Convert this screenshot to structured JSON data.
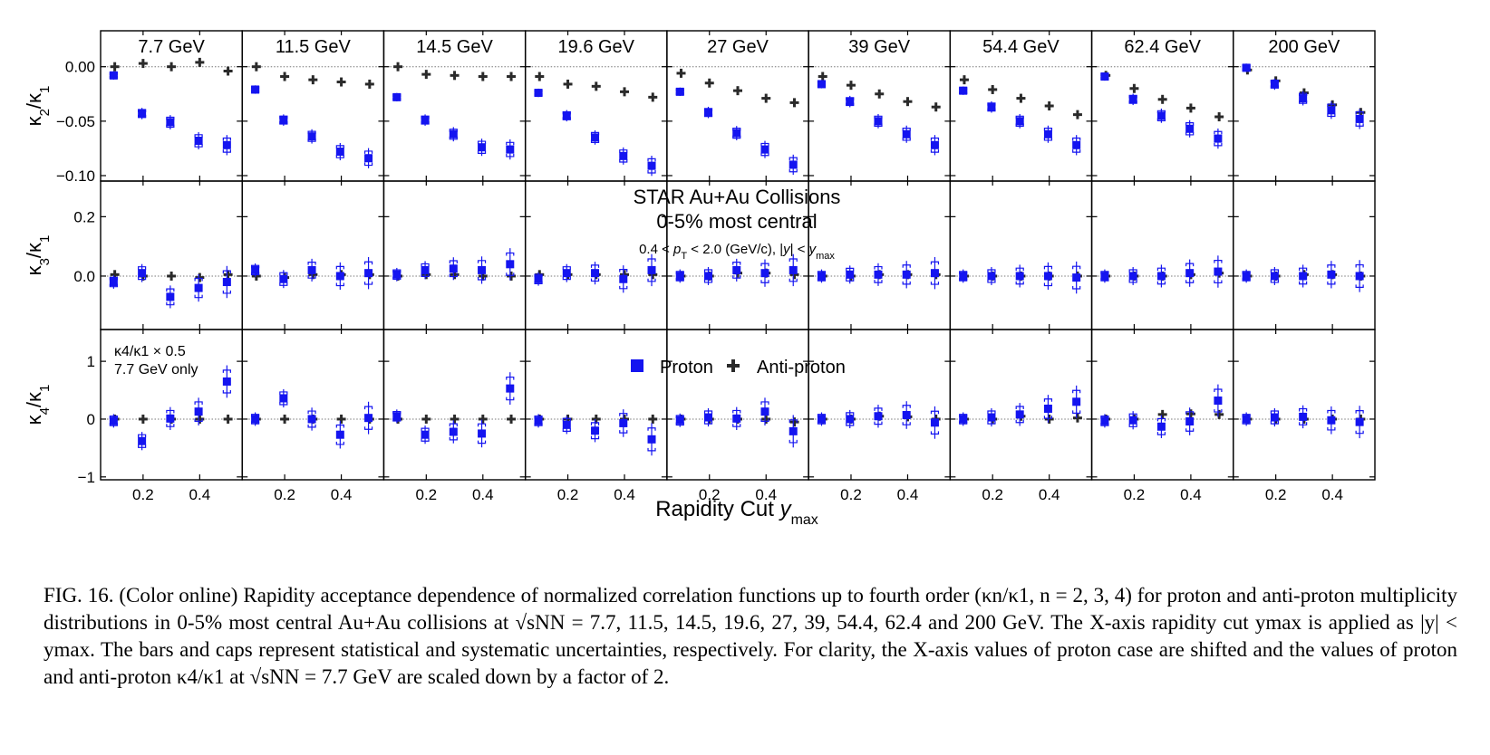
{
  "chart_data": {
    "type": "scatter",
    "title": [
      "STAR Au+Au Collisions",
      "0-5% most central"
    ],
    "subtitle_parts": [
      "0.4 < ",
      "p",
      "T",
      " < 2.0 (GeV/c), |",
      "y",
      "| < ",
      "y",
      "max"
    ],
    "xlabel_parts": [
      "Rapidity Cut ",
      "y",
      "max"
    ],
    "energies": [
      "7.7 GeV",
      "11.5 GeV",
      "14.5 GeV",
      "19.6 GeV",
      "27 GeV",
      "39 GeV",
      "54.4 GeV",
      "62.4 GeV",
      "200 GeV"
    ],
    "x": [
      0.1,
      0.2,
      0.3,
      0.4,
      0.5
    ],
    "x_ticks": [
      0.2,
      0.4
    ],
    "x_tick_labels": [
      "0.2",
      "0.4"
    ],
    "xlim": [
      0.05,
      0.55
    ],
    "legend": [
      "Proton",
      "Anti-proton"
    ],
    "colors": {
      "proton": "#1414f0",
      "antiproton": "#2a2a2a",
      "frame": "#000000",
      "zeroline": "#777777"
    },
    "note_7p7": [
      "κ4/κ1 × 0.5",
      "7.7 GeV only"
    ],
    "rows": [
      {
        "ylabel": [
          "κ",
          "2",
          "/κ",
          "1"
        ],
        "ylim": [
          -0.105,
          0.033
        ],
        "yticks": [
          0.0,
          -0.05,
          -0.1
        ],
        "ytick_labels": [
          "0.00",
          "−0.05",
          "−0.10"
        ],
        "proton": [
          [
            -0.008,
            -0.043,
            -0.051,
            -0.068,
            -0.072
          ],
          [
            -0.021,
            -0.049,
            -0.064,
            -0.078,
            -0.084
          ],
          [
            -0.028,
            -0.049,
            -0.062,
            -0.074,
            -0.076
          ],
          [
            -0.024,
            -0.045,
            -0.065,
            -0.082,
            -0.091
          ],
          [
            -0.023,
            -0.042,
            -0.061,
            -0.076,
            -0.09
          ],
          [
            -0.016,
            -0.032,
            -0.05,
            -0.062,
            -0.072
          ],
          [
            -0.022,
            -0.037,
            -0.05,
            -0.062,
            -0.072
          ],
          [
            -0.009,
            -0.03,
            -0.045,
            -0.057,
            -0.066
          ],
          [
            -0.001,
            -0.016,
            -0.029,
            -0.04,
            -0.048
          ]
        ],
        "antiproton": [
          [
            0.0,
            0.003,
            0.0,
            0.004,
            -0.004
          ],
          [
            0.0,
            -0.009,
            -0.012,
            -0.014,
            -0.016
          ],
          [
            0.0,
            -0.007,
            -0.008,
            -0.009,
            -0.009
          ],
          [
            -0.009,
            -0.016,
            -0.018,
            -0.023,
            -0.028
          ],
          [
            -0.006,
            -0.015,
            -0.022,
            -0.029,
            -0.033
          ],
          [
            -0.009,
            -0.017,
            -0.025,
            -0.032,
            -0.037
          ],
          [
            -0.012,
            -0.021,
            -0.029,
            -0.036,
            -0.044
          ],
          [
            -0.008,
            -0.02,
            -0.03,
            -0.038,
            -0.046
          ],
          [
            -0.003,
            -0.013,
            -0.024,
            -0.035,
            -0.042
          ]
        ]
      },
      {
        "ylabel": [
          "κ",
          "3",
          "/κ",
          "1"
        ],
        "ylim": [
          -0.18,
          0.32
        ],
        "yticks": [
          0.0,
          0.2
        ],
        "ytick_labels": [
          "0.0",
          "0.2"
        ],
        "proton": [
          [
            -0.02,
            0.01,
            -0.07,
            -0.04,
            -0.02
          ],
          [
            0.02,
            -0.01,
            0.02,
            0.0,
            0.01
          ],
          [
            0.005,
            0.02,
            0.025,
            0.02,
            0.04
          ],
          [
            -0.01,
            0.01,
            0.01,
            -0.01,
            0.02
          ],
          [
            0.0,
            0.0,
            0.02,
            0.01,
            0.02
          ],
          [
            0.0,
            0.005,
            0.005,
            0.005,
            0.01
          ],
          [
            0.0,
            0.0,
            0.0,
            0.0,
            -0.005
          ],
          [
            0.0,
            0.0,
            0.0,
            0.01,
            0.015
          ],
          [
            0.0,
            0.0,
            0.0,
            0.005,
            0.0
          ]
        ],
        "antiproton": [
          [
            0.005,
            0.0,
            0.0,
            -0.005,
            0.005
          ],
          [
            0.0,
            -0.005,
            0.005,
            0.005,
            0.005
          ],
          [
            0.0,
            0.005,
            0.005,
            0.0,
            0.0
          ],
          [
            0.005,
            0.005,
            0.005,
            0.005,
            0.005
          ],
          [
            0.0,
            0.0,
            0.01,
            0.01,
            0.005
          ],
          [
            0.0,
            0.0,
            0.005,
            0.005,
            0.005
          ],
          [
            0.0,
            0.0,
            0.0,
            0.0,
            0.0
          ],
          [
            0.0,
            0.0,
            0.0,
            0.005,
            0.01
          ],
          [
            0.0,
            0.0,
            0.005,
            0.005,
            0.0
          ]
        ]
      },
      {
        "ylabel": [
          "κ",
          "4",
          "/κ",
          "1"
        ],
        "ylim": [
          -1.05,
          1.55
        ],
        "yticks": [
          1,
          0,
          -1
        ],
        "ytick_labels": [
          "1",
          "0",
          "−1"
        ],
        "proton": [
          [
            -0.03,
            -0.38,
            0.01,
            0.13,
            0.65
          ],
          [
            0.0,
            0.36,
            0.0,
            -0.27,
            0.02
          ],
          [
            0.05,
            -0.27,
            -0.22,
            -0.25,
            0.53
          ],
          [
            -0.03,
            -0.1,
            -0.2,
            -0.07,
            -0.35
          ],
          [
            -0.02,
            0.03,
            0.01,
            0.13,
            -0.21
          ],
          [
            0.0,
            0.0,
            0.05,
            0.07,
            -0.06
          ],
          [
            0.0,
            0.03,
            0.08,
            0.18,
            0.3
          ],
          [
            -0.03,
            -0.02,
            -0.13,
            -0.04,
            0.32
          ],
          [
            0.0,
            0.03,
            0.04,
            -0.02,
            -0.05
          ]
        ],
        "antiproton": [
          [
            0.0,
            0.0,
            0.0,
            0.0,
            0.0
          ],
          [
            0.0,
            0.0,
            0.0,
            0.0,
            0.0
          ],
          [
            0.0,
            0.0,
            0.0,
            0.0,
            0.0
          ],
          [
            0.0,
            0.0,
            0.0,
            0.0,
            0.0
          ],
          [
            0.0,
            0.0,
            0.0,
            0.0,
            -0.05
          ],
          [
            0.0,
            0.0,
            0.05,
            0.04,
            0.0
          ],
          [
            0.0,
            0.0,
            0.05,
            0.0,
            0.02
          ],
          [
            0.0,
            0.0,
            0.08,
            0.09,
            0.08
          ],
          [
            0.0,
            0.0,
            0.0,
            0.0,
            0.0
          ]
        ]
      }
    ]
  },
  "caption": "FIG. 16. (Color online) Rapidity acceptance dependence of normalized correlation functions up to fourth order (κn/κ1, n = 2, 3, 4) for proton and anti-proton multiplicity distributions in 0-5% most central Au+Au collisions at √sNN = 7.7, 11.5, 14.5, 19.6, 27, 39, 54.4, 62.4 and 200 GeV. The X-axis rapidity cut ymax is applied as |y| < ymax. The bars and caps represent statistical and systematic uncertainties, respectively. For clarity, the X-axis values of proton case are shifted and the values of proton and anti-proton κ4/κ1 at √sNN = 7.7 GeV are scaled down by a factor of 2."
}
